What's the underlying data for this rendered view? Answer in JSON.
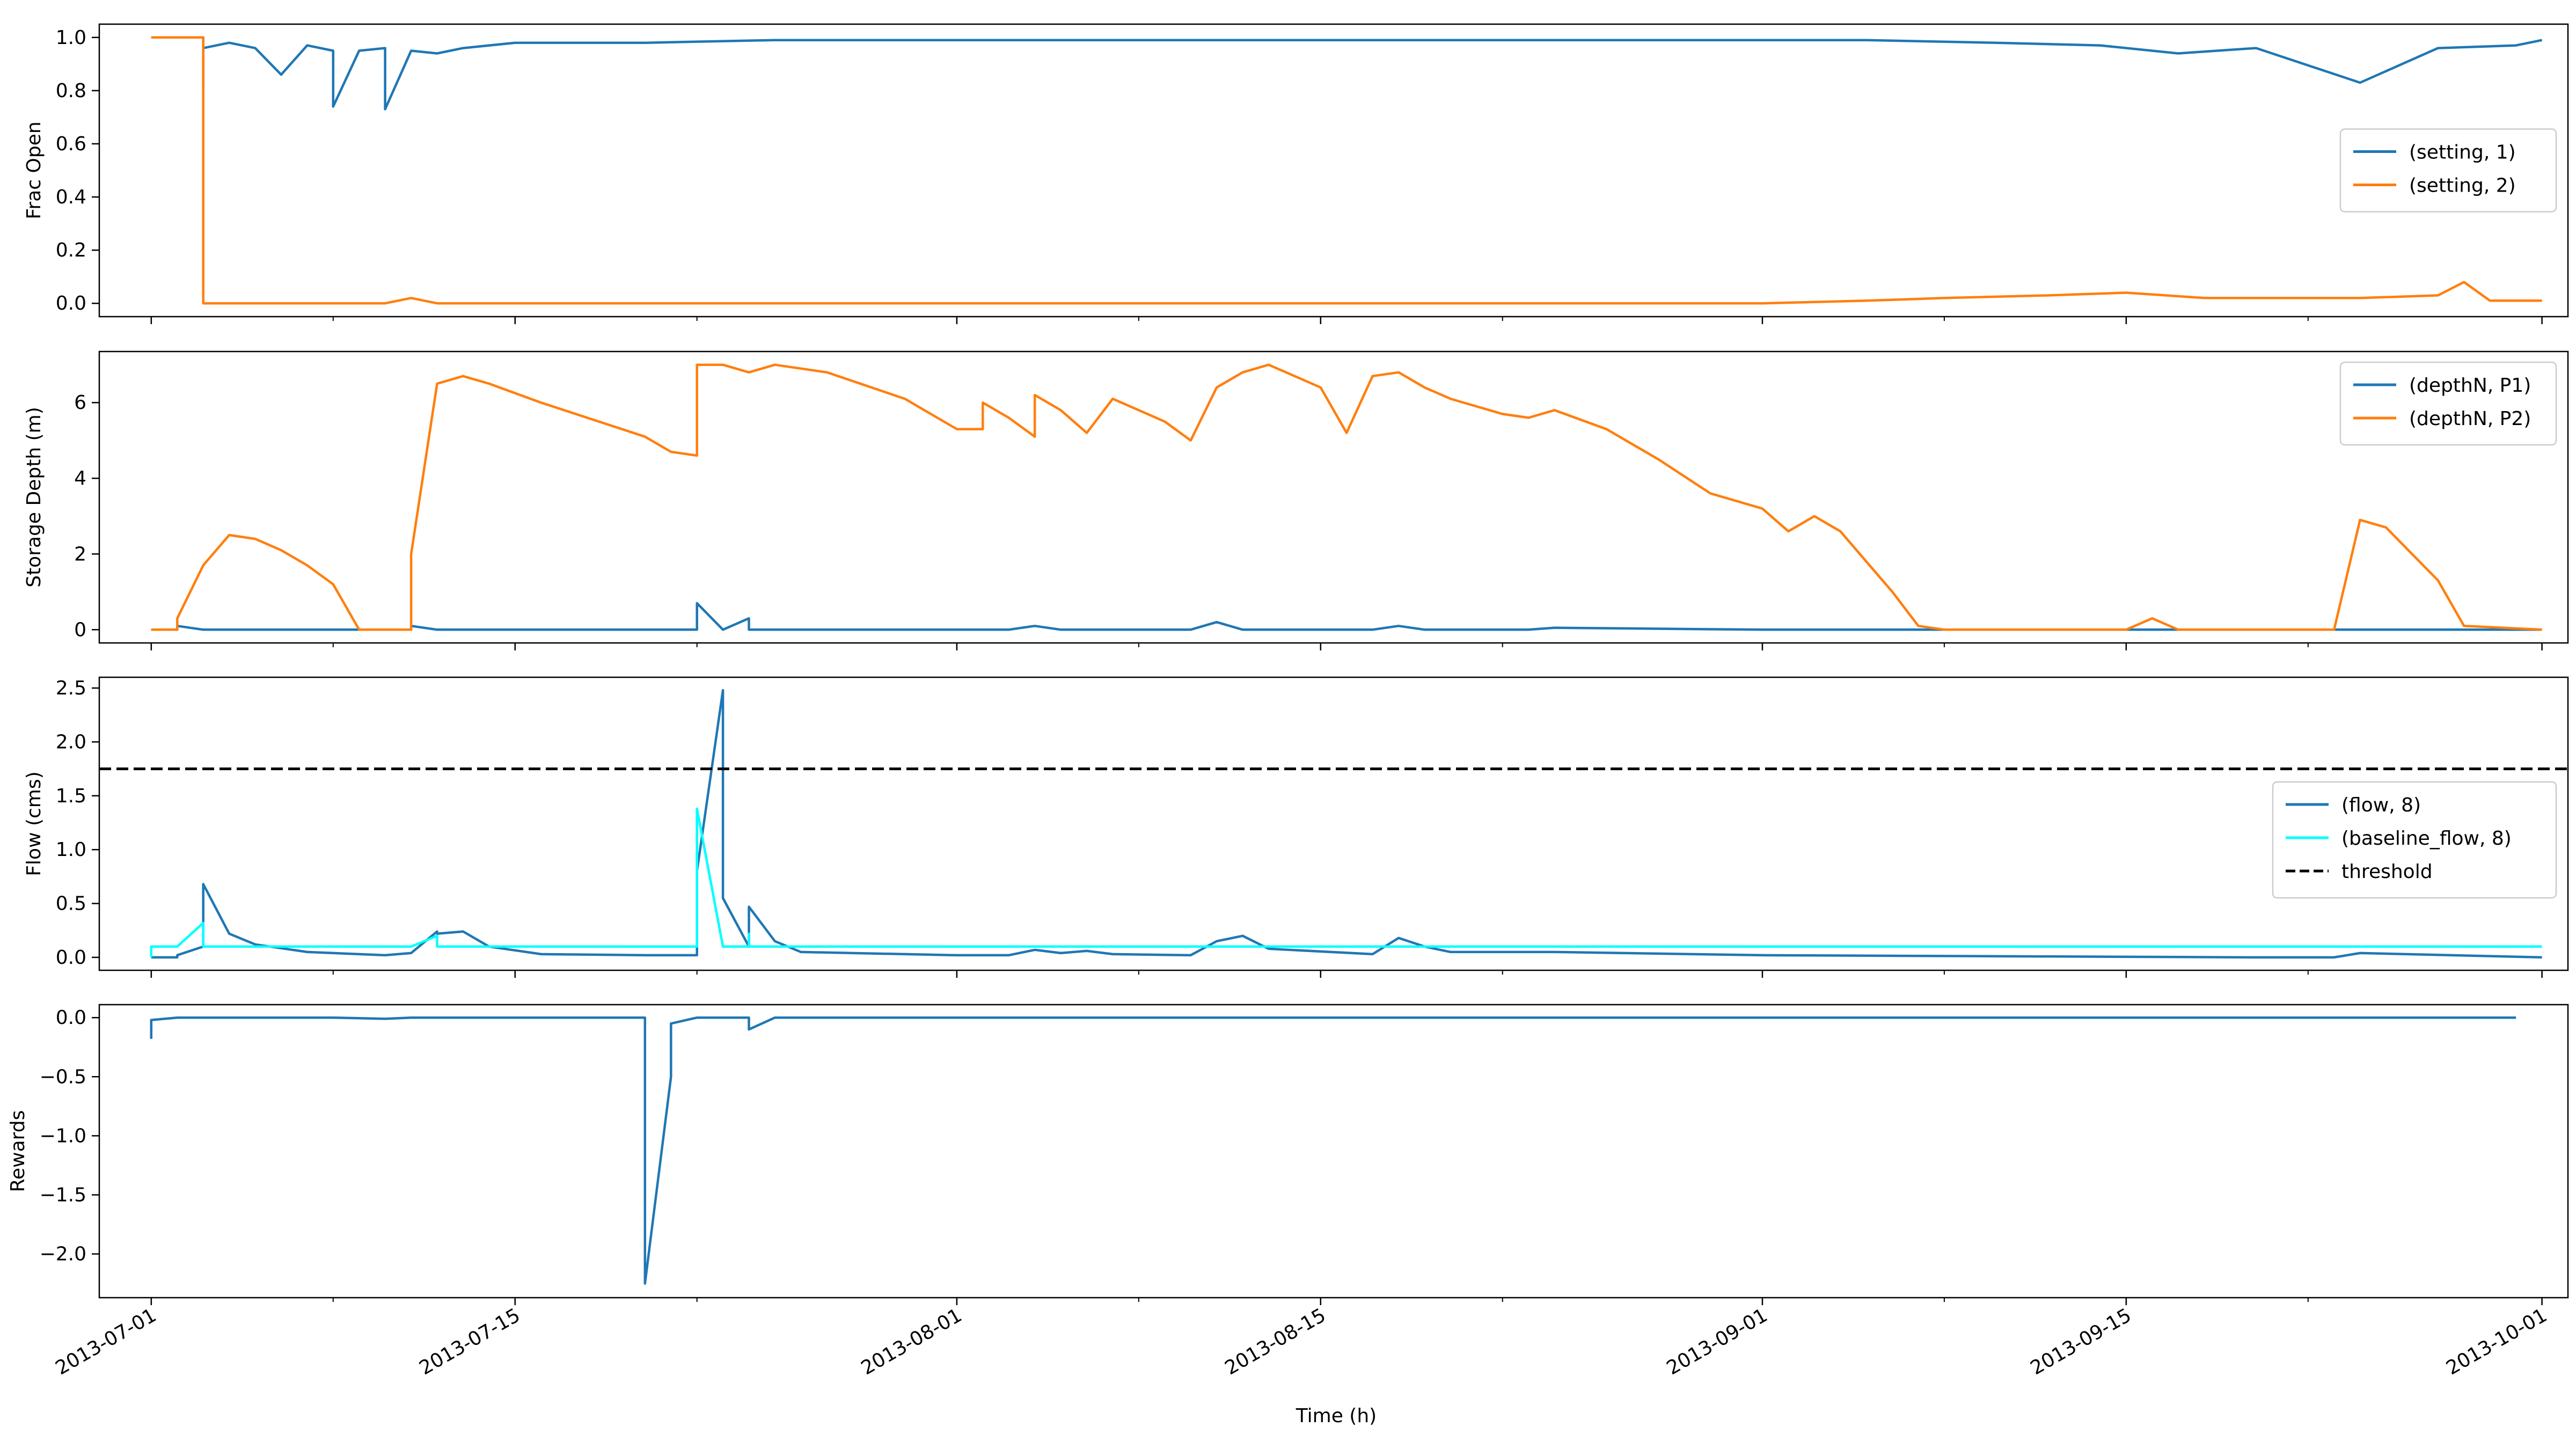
{
  "figure": {
    "xlabel": "Time (h)",
    "x_ticks": [
      "2013-07-01",
      "2013-07-15",
      "2013-08-01",
      "2013-08-15",
      "2013-09-01",
      "2013-09-15",
      "2013-10-01"
    ]
  },
  "chart_data": [
    {
      "type": "line",
      "ylabel": "Frac Open",
      "xlim": [
        "2013-06-29",
        "2013-10-02"
      ],
      "ylim": [
        -0.05,
        1.05
      ],
      "y_ticks": [
        "0.0",
        "0.2",
        "0.4",
        "0.6",
        "0.8",
        "1.0"
      ],
      "legend_position": "right",
      "series": [
        {
          "name": "(setting, 1)",
          "color": "#1f77b4",
          "x": [
            "2013-07-01",
            "2013-07-02",
            "2013-07-02",
            "2013-07-03",
            "2013-07-03",
            "2013-07-03",
            "2013-07-04",
            "2013-07-05",
            "2013-07-06",
            "2013-07-07",
            "2013-07-08",
            "2013-07-08",
            "2013-07-09",
            "2013-07-10",
            "2013-07-10",
            "2013-07-11",
            "2013-07-12",
            "2013-07-13",
            "2013-07-15",
            "2013-07-20",
            "2013-07-25",
            "2013-07-30",
            "2013-08-05",
            "2013-08-10",
            "2013-08-15",
            "2013-08-20",
            "2013-08-25",
            "2013-08-30",
            "2013-09-05",
            "2013-09-10",
            "2013-09-14",
            "2013-09-17",
            "2013-09-20",
            "2013-09-24",
            "2013-09-27",
            "2013-09-30",
            "2013-10-01"
          ],
          "y": [
            1.0,
            1.0,
            1.0,
            1.0,
            0.81,
            0.96,
            0.98,
            0.96,
            0.86,
            0.97,
            0.95,
            0.74,
            0.95,
            0.96,
            0.73,
            0.95,
            0.94,
            0.96,
            0.98,
            0.98,
            0.99,
            0.99,
            0.99,
            0.99,
            0.99,
            0.99,
            0.99,
            0.99,
            0.99,
            0.98,
            0.97,
            0.94,
            0.96,
            0.83,
            0.96,
            0.97,
            0.99
          ]
        },
        {
          "name": "(setting, 2)",
          "color": "#ff7f0e",
          "x": [
            "2013-07-01",
            "2013-07-02",
            "2013-07-03",
            "2013-07-03",
            "2013-07-10",
            "2013-07-11",
            "2013-07-12",
            "2013-08-01",
            "2013-09-01",
            "2013-09-05",
            "2013-09-08",
            "2013-09-12",
            "2013-09-15",
            "2013-09-18",
            "2013-09-21",
            "2013-09-24",
            "2013-09-27",
            "2013-09-28",
            "2013-09-29",
            "2013-10-01"
          ],
          "y": [
            1.0,
            1.0,
            1.0,
            0.0,
            0.0,
            0.02,
            0.0,
            0.0,
            0.0,
            0.01,
            0.02,
            0.03,
            0.04,
            0.02,
            0.02,
            0.02,
            0.03,
            0.08,
            0.01,
            0.01
          ]
        }
      ]
    },
    {
      "type": "line",
      "ylabel": "Storage Depth (m)",
      "xlim": [
        "2013-06-29",
        "2013-10-02"
      ],
      "ylim": [
        -0.35,
        7.35
      ],
      "y_ticks": [
        "0",
        "2",
        "4",
        "6"
      ],
      "legend_position": "top-right",
      "series": [
        {
          "name": "(depthN, P1)",
          "color": "#1f77b4",
          "x": [
            "2013-07-01",
            "2013-07-02",
            "2013-07-02",
            "2013-07-03",
            "2013-07-03",
            "2013-07-11",
            "2013-07-11",
            "2013-07-12",
            "2013-07-21",
            "2013-07-22",
            "2013-07-22",
            "2013-07-23",
            "2013-07-23",
            "2013-07-24",
            "2013-07-24",
            "2013-08-03",
            "2013-08-04",
            "2013-08-05",
            "2013-08-06",
            "2013-08-10",
            "2013-08-11",
            "2013-08-12",
            "2013-08-17",
            "2013-08-18",
            "2013-08-19",
            "2013-08-23",
            "2013-08-24",
            "2013-09-01",
            "2013-09-07",
            "2013-09-30",
            "2013-10-01"
          ],
          "y": [
            0.0,
            0.0,
            0.1,
            0.0,
            0.0,
            0.0,
            0.1,
            0.0,
            0.0,
            0.0,
            0.7,
            0.0,
            0.0,
            0.3,
            0.0,
            0.0,
            0.1,
            0.0,
            0.0,
            0.0,
            0.2,
            0.0,
            0.0,
            0.1,
            0.0,
            0.0,
            0.05,
            0.0,
            0.0,
            0.0,
            0.0
          ]
        },
        {
          "name": "(depthN, P2)",
          "color": "#ff7f0e",
          "x": [
            "2013-07-01",
            "2013-07-02",
            "2013-07-02",
            "2013-07-03",
            "2013-07-04",
            "2013-07-05",
            "2013-07-06",
            "2013-07-07",
            "2013-07-08",
            "2013-07-09",
            "2013-07-10",
            "2013-07-11",
            "2013-07-11",
            "2013-07-12",
            "2013-07-13",
            "2013-07-14",
            "2013-07-16",
            "2013-07-20",
            "2013-07-21",
            "2013-07-22",
            "2013-07-22",
            "2013-07-23",
            "2013-07-24",
            "2013-07-25",
            "2013-07-27",
            "2013-07-30",
            "2013-08-01",
            "2013-08-02",
            "2013-08-02",
            "2013-08-03",
            "2013-08-04",
            "2013-08-04",
            "2013-08-05",
            "2013-08-06",
            "2013-08-07",
            "2013-08-09",
            "2013-08-10",
            "2013-08-11",
            "2013-08-12",
            "2013-08-13",
            "2013-08-14",
            "2013-08-15",
            "2013-08-16",
            "2013-08-17",
            "2013-08-18",
            "2013-08-19",
            "2013-08-20",
            "2013-08-22",
            "2013-08-23",
            "2013-08-24",
            "2013-08-26",
            "2013-08-28",
            "2013-08-30",
            "2013-09-01",
            "2013-09-02",
            "2013-09-03",
            "2013-09-04",
            "2013-09-05",
            "2013-09-06",
            "2013-09-07",
            "2013-09-08",
            "2013-09-09",
            "2013-09-15",
            "2013-09-16",
            "2013-09-17",
            "2013-09-19",
            "2013-09-22",
            "2013-09-23",
            "2013-09-24",
            "2013-09-25",
            "2013-09-26",
            "2013-09-27",
            "2013-09-28",
            "2013-10-01"
          ],
          "y": [
            0.0,
            0.0,
            0.3,
            1.7,
            2.5,
            2.4,
            2.1,
            1.7,
            1.2,
            0.0,
            0.0,
            0.0,
            2.0,
            6.5,
            6.7,
            6.5,
            6.0,
            5.1,
            4.7,
            4.6,
            7.0,
            7.0,
            6.8,
            7.0,
            6.8,
            6.1,
            5.3,
            5.3,
            6.0,
            5.6,
            5.1,
            6.2,
            5.8,
            5.2,
            6.1,
            5.5,
            5.0,
            6.4,
            6.8,
            7.0,
            6.7,
            6.4,
            5.2,
            6.7,
            6.8,
            6.4,
            6.1,
            5.7,
            5.6,
            5.8,
            5.3,
            4.5,
            3.6,
            3.2,
            2.6,
            3.0,
            2.6,
            1.8,
            1.0,
            0.1,
            0.0,
            0.0,
            0.0,
            0.3,
            0.0,
            0.0,
            0.0,
            0.0,
            2.9,
            2.7,
            2.0,
            1.3,
            0.1,
            0.0
          ]
        }
      ]
    },
    {
      "type": "line",
      "ylabel": "Flow (cms)",
      "xlim": [
        "2013-06-29",
        "2013-10-02"
      ],
      "ylim": [
        -0.12,
        2.6
      ],
      "y_ticks": [
        "0.0",
        "0.5",
        "1.0",
        "1.5",
        "2.0",
        "2.5"
      ],
      "legend_position": "right",
      "threshold": 1.75,
      "series": [
        {
          "name": "(flow, 8)",
          "color": "#1f77b4",
          "x": [
            "2013-07-01",
            "2013-07-02",
            "2013-07-02",
            "2013-07-03",
            "2013-07-03",
            "2013-07-04",
            "2013-07-05",
            "2013-07-07",
            "2013-07-10",
            "2013-07-11",
            "2013-07-12",
            "2013-07-12",
            "2013-07-13",
            "2013-07-14",
            "2013-07-16",
            "2013-07-20",
            "2013-07-22",
            "2013-07-22",
            "2013-07-23",
            "2013-07-23",
            "2013-07-24",
            "2013-07-24",
            "2013-07-25",
            "2013-07-26",
            "2013-08-01",
            "2013-08-03",
            "2013-08-04",
            "2013-08-05",
            "2013-08-06",
            "2013-08-07",
            "2013-08-10",
            "2013-08-11",
            "2013-08-12",
            "2013-08-13",
            "2013-08-17",
            "2013-08-18",
            "2013-08-19",
            "2013-08-20",
            "2013-08-24",
            "2013-09-01",
            "2013-09-20",
            "2013-09-23",
            "2013-09-24",
            "2013-10-01"
          ],
          "y": [
            0.0,
            0.0,
            0.02,
            0.1,
            0.68,
            0.22,
            0.12,
            0.05,
            0.02,
            0.04,
            0.24,
            0.22,
            0.24,
            0.1,
            0.03,
            0.02,
            0.02,
            0.8,
            2.48,
            0.55,
            0.1,
            0.47,
            0.15,
            0.05,
            0.02,
            0.02,
            0.07,
            0.04,
            0.06,
            0.03,
            0.02,
            0.15,
            0.2,
            0.08,
            0.03,
            0.18,
            0.1,
            0.05,
            0.05,
            0.02,
            0.0,
            0.0,
            0.04,
            0.0
          ]
        },
        {
          "name": "(baseline_flow, 8)",
          "color": "#00ffff",
          "x": [
            "2013-07-01",
            "2013-07-01",
            "2013-07-02",
            "2013-07-03",
            "2013-07-03",
            "2013-07-11",
            "2013-07-12",
            "2013-07-12",
            "2013-07-22",
            "2013-07-22",
            "2013-07-22",
            "2013-07-23",
            "2013-07-24",
            "2013-07-24",
            "2013-07-24",
            "2013-10-01"
          ],
          "y": [
            0.0,
            0.1,
            0.1,
            0.32,
            0.1,
            0.1,
            0.2,
            0.1,
            0.1,
            0.1,
            1.38,
            0.1,
            0.1,
            0.22,
            0.1,
            0.1
          ]
        },
        {
          "name": "threshold",
          "color": "#000000",
          "x": [
            "2013-06-29",
            "2013-10-02"
          ],
          "y": [
            1.75,
            1.75
          ]
        }
      ]
    },
    {
      "type": "line",
      "ylabel": "Rewards",
      "xlim": [
        "2013-06-29",
        "2013-10-02"
      ],
      "ylim": [
        -2.37,
        0.11
      ],
      "y_ticks": [
        "0.0",
        "-0.5",
        "-1.0",
        "-1.5",
        "-2.0"
      ],
      "series": [
        {
          "name": "",
          "color": "#1f77b4",
          "x": [
            "2013-07-01",
            "2013-07-01",
            "2013-07-02",
            "2013-07-08",
            "2013-07-10",
            "2013-07-11",
            "2013-07-20",
            "2013-07-20",
            "2013-07-20",
            "2013-07-20",
            "2013-07-21",
            "2013-07-21",
            "2013-07-22",
            "2013-07-23",
            "2013-07-24",
            "2013-07-24",
            "2013-07-25",
            "2013-08-01",
            "2013-09-01",
            "2013-09-30"
          ],
          "y": [
            -0.18,
            -0.02,
            0.0,
            0.0,
            -0.01,
            0.0,
            0.0,
            -0.5,
            -0.02,
            -2.25,
            -0.5,
            -0.05,
            0.0,
            0.0,
            0.0,
            -0.1,
            0.0,
            0.0,
            0.0,
            0.0
          ]
        }
      ]
    }
  ]
}
